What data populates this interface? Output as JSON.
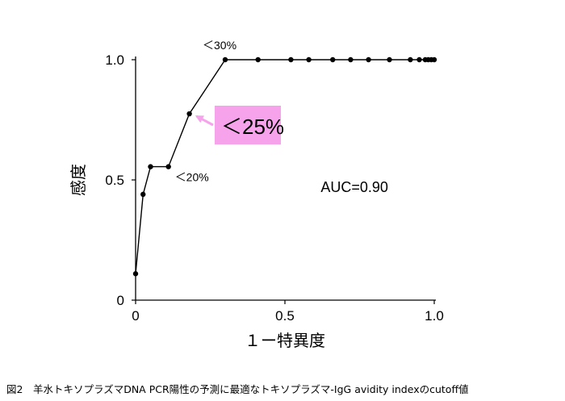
{
  "chart_data": {
    "type": "line",
    "title": "",
    "xlabel": "１ー特異度",
    "ylabel": "感度",
    "xlim": [
      0,
      1
    ],
    "ylim": [
      0,
      1
    ],
    "x_ticks": [
      "0",
      "0.5",
      "1.0"
    ],
    "y_ticks": [
      "0",
      "0.5",
      "1.0"
    ],
    "grid": false,
    "series": [
      {
        "x": [
          0,
          0.025,
          0.05,
          0.11,
          0.18,
          0.3,
          0.41,
          0.52,
          0.58,
          0.66,
          0.72,
          0.78,
          0.85,
          0.92,
          0.95,
          0.97,
          0.98,
          0.99,
          1.0
        ],
        "y": [
          0.11,
          0.44,
          0.555,
          0.555,
          0.775,
          1.0,
          1.0,
          1.0,
          1.0,
          1.0,
          1.0,
          1.0,
          1.0,
          1.0,
          1.0,
          1.0,
          1.0,
          1.0,
          1.0
        ]
      }
    ],
    "annotations": [
      {
        "text": "＜30%",
        "x": 0.3,
        "y": 1.0
      },
      {
        "text": "＜20%",
        "x": 0.11,
        "y": 0.555
      },
      {
        "text": "AUC=0.90",
        "x": 0.62,
        "y": 0.45
      }
    ],
    "callout": {
      "text": "＜25%",
      "x": 0.18,
      "y": 0.775,
      "color": "#f7a3ec"
    },
    "line_color": "#000000"
  },
  "caption": "図2　羊水トキソプラズマDNA PCR陽性の予測に最適なトキソプラズマ-IgG avidity indexのcutoff値"
}
